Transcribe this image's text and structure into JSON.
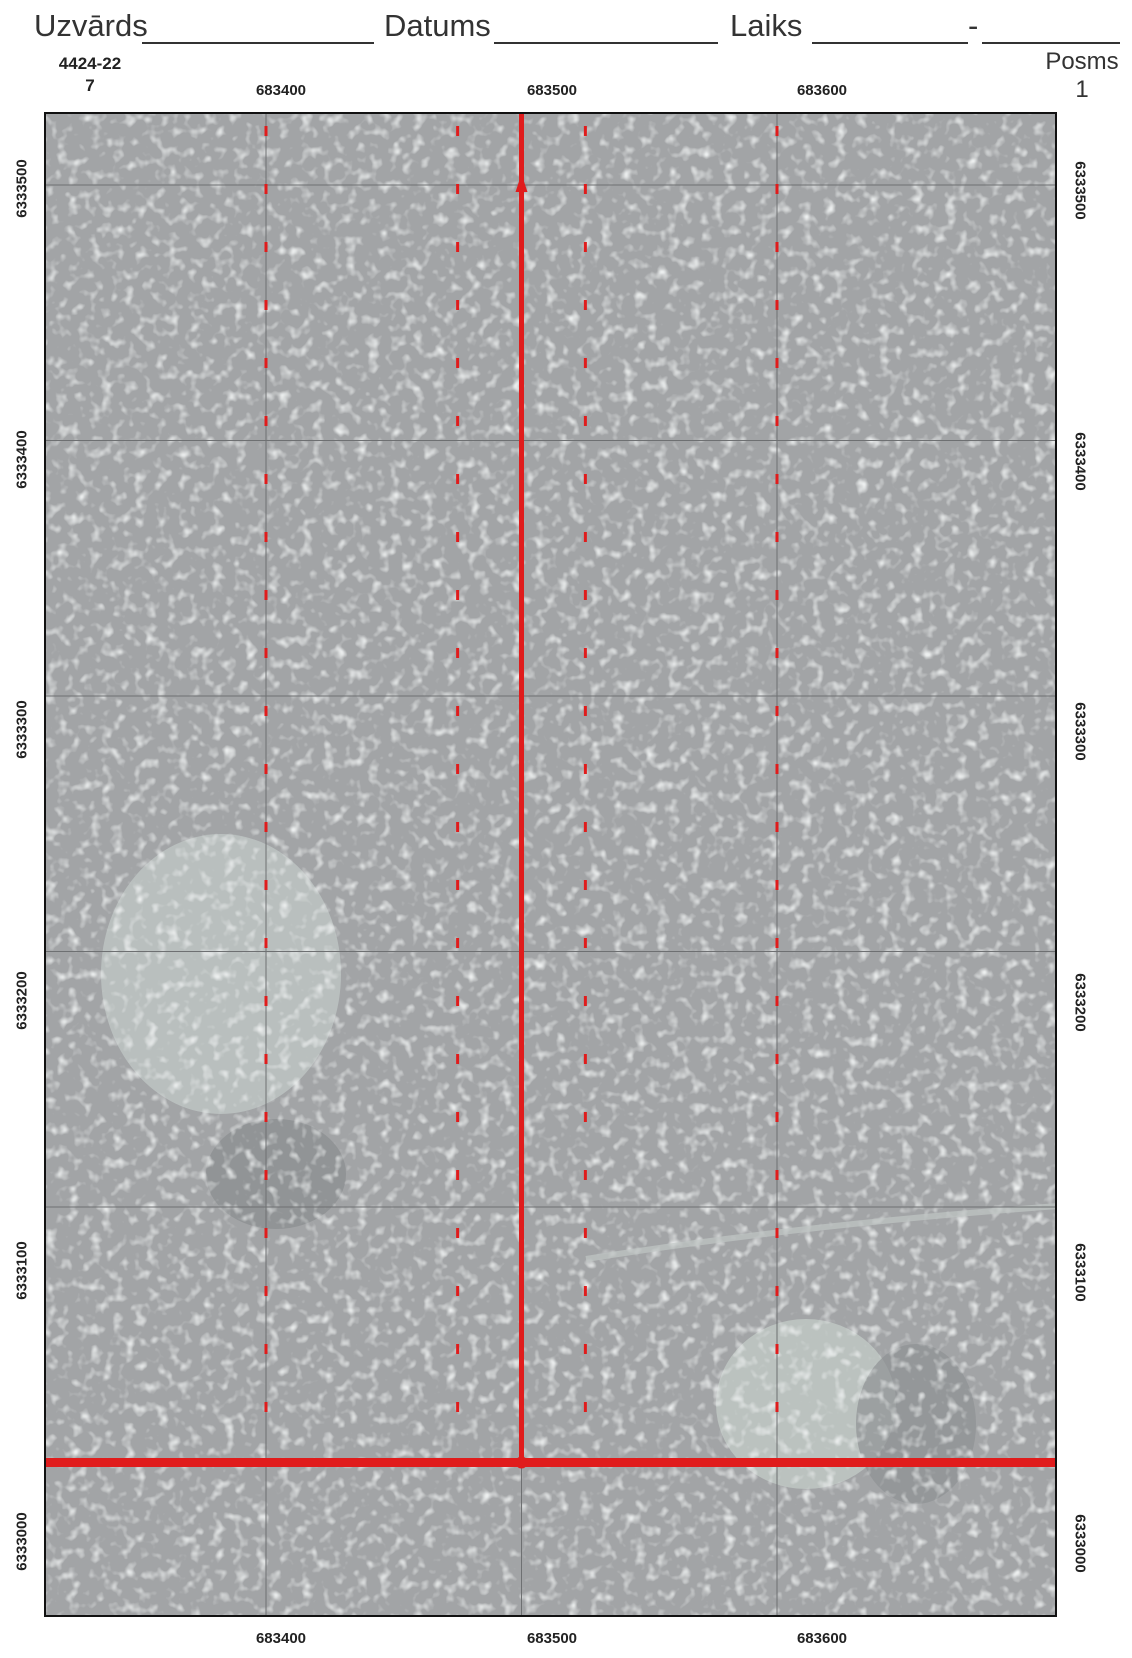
{
  "form": {
    "name_label": "Uzvārds",
    "date_label": "Datums",
    "time_label": "Laiks",
    "time_separator": "-"
  },
  "sheet": {
    "id_line1": "4424-22",
    "id_line2": "7",
    "segment_label": "Posms",
    "segment_value": "1"
  },
  "axes": {
    "easting_ticks": [
      "683400",
      "683500",
      "683600"
    ],
    "northing_ticks": [
      "6333500",
      "6333400",
      "6333300",
      "6333200",
      "6333100",
      "6333000"
    ]
  },
  "colors": {
    "route": "#e01c1c",
    "grid": "#6e7072",
    "imagery": "#a2a4a6"
  },
  "map": {
    "imagery": "aerial-forest-grayscale",
    "main_transect_easting": 683500,
    "baseline_northing": 6333000,
    "dashed_lines_easting": [
      683400,
      683475,
      683525,
      683600
    ]
  }
}
